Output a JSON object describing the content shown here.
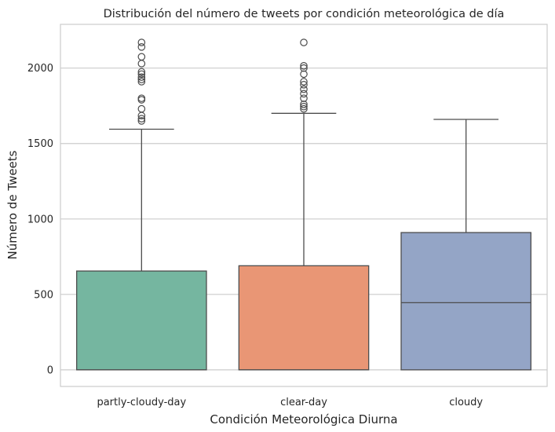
{
  "chart_data": {
    "type": "boxplot",
    "title": "Distribución del número de tweets por condición meteorológica de día",
    "xlabel": "Condición Meteorológica Diurna",
    "ylabel": "Número de Tweets",
    "ylim": [
      -110,
      2290
    ],
    "yticks": [
      0,
      500,
      1000,
      1500,
      2000
    ],
    "ytick_labels": [
      "0",
      "500",
      "1000",
      "1500",
      "2000"
    ],
    "grid": "horizontal",
    "categories": [
      "partly-cloudy-day",
      "clear-day",
      "cloudy"
    ],
    "boxes": [
      {
        "category": "partly-cloudy-day",
        "color": "#75b6a0",
        "whisker_low": 0,
        "q1": 0,
        "median": 0,
        "q3": 655,
        "whisker_high": 1595,
        "outliers": [
          1650,
          1665,
          1685,
          1730,
          1790,
          1800,
          1910,
          1925,
          1940,
          1960,
          1975,
          2030,
          2075,
          2140,
          2170
        ]
      },
      {
        "category": "clear-day",
        "color": "#e99675",
        "whisker_low": 0,
        "q1": 0,
        "median": 0,
        "q3": 690,
        "whisker_high": 1700,
        "outliers": [
          1730,
          1745,
          1760,
          1800,
          1830,
          1860,
          1890,
          1910,
          1960,
          2000,
          2015,
          2170
        ]
      },
      {
        "category": "cloudy",
        "color": "#94a5c6",
        "whisker_low": 0,
        "q1": 0,
        "median": 445,
        "q3": 910,
        "whisker_high": 1660,
        "outliers": []
      }
    ]
  }
}
